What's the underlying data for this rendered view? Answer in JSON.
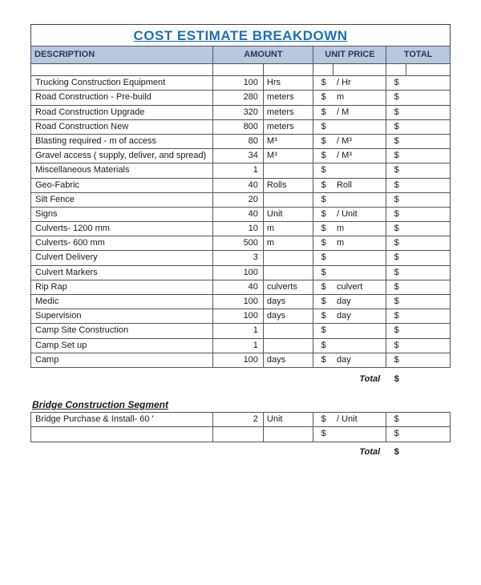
{
  "title": "COST ESTIMATE BREAKDOWN",
  "headers": {
    "description": "DESCRIPTION",
    "amount": "AMOUNT",
    "unit_price": "UNIT PRICE",
    "total": "TOTAL"
  },
  "currency": "$",
  "total_label": "Total",
  "rows": [
    {
      "desc": "Trucking Construction Equipment",
      "amt": "100",
      "amt_unit": "Hrs",
      "up_unit": "/ Hr"
    },
    {
      "desc": "Road Construction - Pre-build",
      "amt": "280",
      "amt_unit": "meters",
      "up_unit": "m"
    },
    {
      "desc": "Road Construction Upgrade",
      "amt": "320",
      "amt_unit": "meters",
      "up_unit": "/ M"
    },
    {
      "desc": "Road Construction New",
      "amt": "800",
      "amt_unit": "meters",
      "up_unit": ""
    },
    {
      "desc": "Blasting required -  m of access",
      "amt": "80",
      "amt_unit": "M³",
      "up_unit": "/ M³"
    },
    {
      "desc": "Gravel access ( supply, deliver, and spread)",
      "amt": "34",
      "amt_unit": "M³",
      "up_unit": "/ M³"
    },
    {
      "desc": "Miscellaneous Materials",
      "amt": "1",
      "amt_unit": "",
      "up_unit": ""
    },
    {
      "desc": "Geo-Fabric",
      "amt": "40",
      "amt_unit": "Rolls",
      "up_unit": "Roll"
    },
    {
      "desc": "Silt Fence",
      "amt": "20",
      "amt_unit": "",
      "up_unit": ""
    },
    {
      "desc": "Signs",
      "amt": "40",
      "amt_unit": "Unit",
      "up_unit": "/ Unit"
    },
    {
      "desc": "Culverts- 1200 mm",
      "amt": "10",
      "amt_unit": "m",
      "up_unit": "m"
    },
    {
      "desc": "Culverts- 600 mm",
      "amt": "500",
      "amt_unit": "m",
      "up_unit": "m"
    },
    {
      "desc": "Culvert Delivery",
      "amt": "3",
      "amt_unit": "",
      "up_unit": ""
    },
    {
      "desc": "Culvert Markers",
      "amt": "100",
      "amt_unit": "",
      "up_unit": ""
    },
    {
      "desc": "Rip Rap",
      "amt": "40",
      "amt_unit": "culverts",
      "up_unit": "culvert"
    },
    {
      "desc": "Medic",
      "amt": "100",
      "amt_unit": "days",
      "up_unit": "day"
    },
    {
      "desc": "Supervision",
      "amt": "100",
      "amt_unit": "days",
      "up_unit": "day"
    },
    {
      "desc": "Camp Site Construction",
      "amt": "1",
      "amt_unit": "",
      "up_unit": ""
    },
    {
      "desc": "Camp Set up",
      "amt": "1",
      "amt_unit": "",
      "up_unit": ""
    },
    {
      "desc": "Camp",
      "amt": "100",
      "amt_unit": "days",
      "up_unit": "day"
    }
  ],
  "segment": {
    "title": "Bridge Construction Segment",
    "rows": [
      {
        "desc": "Bridge Purchase & Install- 60 '",
        "amt": "2",
        "amt_unit": "Unit",
        "up_unit": "/ Unit"
      },
      {
        "desc": "",
        "amt": "",
        "amt_unit": "",
        "up_unit": ""
      }
    ]
  }
}
